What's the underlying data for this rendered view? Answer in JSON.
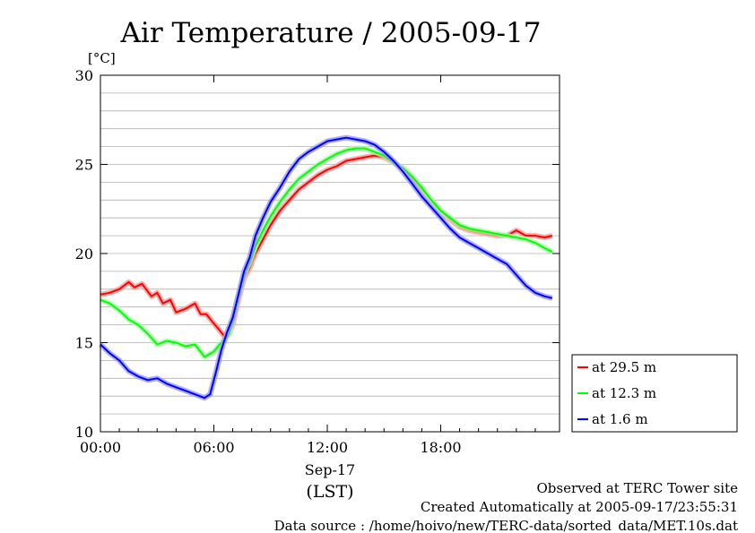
{
  "chart_data": {
    "type": "line",
    "title": "Air Temperature / 2005-09-17",
    "ylabel": "[°C]",
    "xlabel": "(LST)",
    "date_label": "Sep-17",
    "ylim": [
      10,
      30
    ],
    "yticks": [
      "10",
      "15",
      "20",
      "25",
      "30"
    ],
    "xticks": [
      "00:00",
      "06:00",
      "12:00",
      "18:00"
    ],
    "xlim_hours": [
      0,
      23.9
    ],
    "grid": "horizontal",
    "legend_position": "bottom-right, outside plot",
    "series": [
      {
        "name": "at 29.5 m",
        "color": "#ff0000",
        "x_hours": [
          0,
          0.5,
          1.0,
          1.5,
          1.8,
          2.2,
          2.7,
          3.0,
          3.3,
          3.7,
          4.0,
          4.5,
          5.0,
          5.3,
          5.6,
          5.9,
          6.3,
          6.6,
          6.8,
          7.0,
          7.3,
          7.6,
          7.9,
          8.2,
          8.6,
          9.0,
          9.5,
          10.0,
          10.5,
          11.0,
          11.5,
          12.0,
          12.5,
          13.0,
          13.5,
          14.0,
          14.5,
          15.0,
          15.5,
          16.0,
          16.5,
          17.0,
          17.5,
          18.0,
          18.5,
          19.0,
          19.5,
          20.0,
          20.5,
          21.0,
          21.5,
          22.0,
          22.5,
          23.0,
          23.5,
          23.9
        ],
        "values": [
          17.7,
          17.8,
          18.0,
          18.4,
          18.1,
          18.3,
          17.6,
          17.8,
          17.2,
          17.4,
          16.7,
          16.9,
          17.2,
          16.6,
          16.6,
          16.2,
          15.7,
          15.3,
          15.5,
          16.0,
          17.4,
          18.6,
          19.2,
          20.0,
          20.8,
          21.6,
          22.4,
          23.0,
          23.6,
          24.0,
          24.4,
          24.7,
          24.9,
          25.2,
          25.3,
          25.4,
          25.5,
          25.4,
          25.1,
          24.8,
          24.2,
          23.6,
          23.0,
          22.4,
          21.9,
          21.5,
          21.3,
          21.2,
          21.1,
          21.0,
          21.0,
          21.3,
          21.0,
          21.0,
          20.9,
          21.0
        ]
      },
      {
        "name": "at 12.3 m",
        "color": "#00ff00",
        "x_hours": [
          0,
          0.5,
          1.0,
          1.5,
          2.0,
          2.5,
          3.0,
          3.5,
          4.0,
          4.5,
          5.0,
          5.5,
          6.0,
          6.3,
          6.6,
          6.8,
          7.0,
          7.3,
          7.6,
          7.9,
          8.2,
          8.6,
          9.0,
          9.5,
          10.0,
          10.5,
          11.0,
          11.5,
          12.0,
          12.5,
          13.0,
          13.5,
          14.0,
          14.5,
          15.0,
          15.5,
          16.0,
          16.5,
          17.0,
          17.5,
          18.0,
          18.5,
          19.0,
          19.5,
          20.0,
          20.5,
          21.0,
          21.5,
          22.0,
          22.5,
          23.0,
          23.5,
          23.9
        ],
        "values": [
          17.4,
          17.2,
          16.8,
          16.3,
          16.0,
          15.5,
          14.9,
          15.1,
          15.0,
          14.8,
          14.9,
          14.2,
          14.5,
          14.9,
          15.2,
          15.5,
          16.3,
          17.6,
          18.8,
          19.5,
          20.4,
          21.3,
          22.1,
          22.9,
          23.6,
          24.2,
          24.6,
          25.0,
          25.3,
          25.6,
          25.8,
          25.9,
          25.9,
          25.7,
          25.5,
          25.1,
          24.8,
          24.3,
          23.7,
          23.0,
          22.4,
          22.0,
          21.6,
          21.4,
          21.3,
          21.2,
          21.1,
          21.0,
          20.9,
          20.8,
          20.6,
          20.3,
          20.1
        ]
      },
      {
        "name": "at 1.6 m",
        "color": "#0000ff",
        "x_hours": [
          0,
          0.5,
          1.0,
          1.5,
          2.0,
          2.5,
          3.0,
          3.5,
          4.0,
          4.5,
          5.0,
          5.5,
          5.8,
          6.1,
          6.4,
          6.7,
          7.0,
          7.3,
          7.6,
          7.9,
          8.2,
          8.6,
          9.0,
          9.5,
          10.0,
          10.5,
          11.0,
          11.5,
          12.0,
          12.5,
          13.0,
          13.5,
          14.0,
          14.5,
          15.0,
          15.5,
          16.0,
          16.5,
          17.0,
          17.5,
          18.0,
          18.5,
          19.0,
          19.5,
          20.0,
          20.5,
          21.0,
          21.5,
          22.0,
          22.5,
          23.0,
          23.5,
          23.9
        ],
        "values": [
          14.9,
          14.4,
          14.0,
          13.4,
          13.1,
          12.9,
          13.0,
          12.7,
          12.5,
          12.3,
          12.1,
          11.9,
          12.1,
          13.3,
          14.6,
          15.6,
          16.4,
          17.7,
          19.0,
          19.8,
          21.0,
          22.0,
          22.9,
          23.7,
          24.6,
          25.3,
          25.7,
          26.0,
          26.3,
          26.4,
          26.5,
          26.4,
          26.3,
          26.1,
          25.7,
          25.2,
          24.6,
          23.9,
          23.2,
          22.6,
          22.0,
          21.4,
          20.9,
          20.6,
          20.3,
          20.0,
          19.7,
          19.4,
          18.8,
          18.2,
          17.8,
          17.6,
          17.5
        ]
      }
    ]
  },
  "footer": {
    "line1": "Observed at TERC Tower site",
    "line2": "Created Automatically at 2005-09-17/23:55:31",
    "line3": "Data source : /home/hoivo/new/TERC-data/sorted_data/MET.10s.dat"
  }
}
